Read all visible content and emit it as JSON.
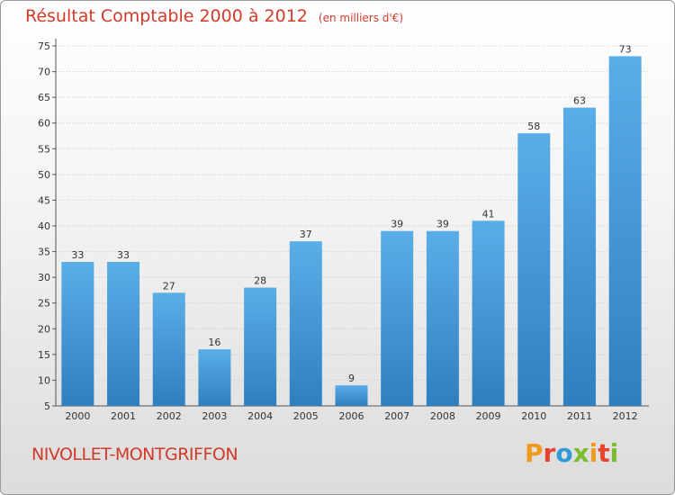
{
  "colors": {
    "bar_top": "#5aaee8",
    "bar_bottom": "#2e7fbf",
    "title": "#d23a2a",
    "logo": [
      "#f29a1e",
      "#e8432e",
      "#2f9ad6",
      "#7bbd2f",
      "#f29a1e",
      "#e8432e",
      "#7bbd2f"
    ]
  },
  "header": {
    "title": "Résultat Comptable 2000 à 2012",
    "subtitle": "(en milliers d'€)"
  },
  "footer": {
    "commune": "NIVOLLET-MONTGRIFFON",
    "logo_text": "Proxiti",
    "logo_icon": "proxiti-logo"
  },
  "chart_data": {
    "type": "bar",
    "title": "Résultat Comptable 2000 à 2012",
    "subtitle": "(en milliers d'€)",
    "categories": [
      "2000",
      "2001",
      "2002",
      "2003",
      "2004",
      "2005",
      "2006",
      "2007",
      "2008",
      "2009",
      "2010",
      "2011",
      "2012"
    ],
    "values": [
      33,
      33,
      27,
      16,
      28,
      37,
      9,
      39,
      39,
      41,
      58,
      63,
      73
    ],
    "ylim": [
      5,
      75
    ],
    "yticks": [
      5,
      10,
      15,
      20,
      25,
      30,
      35,
      40,
      45,
      50,
      55,
      60,
      65,
      70,
      75
    ],
    "grid": true,
    "xlabel": "",
    "ylabel": ""
  }
}
